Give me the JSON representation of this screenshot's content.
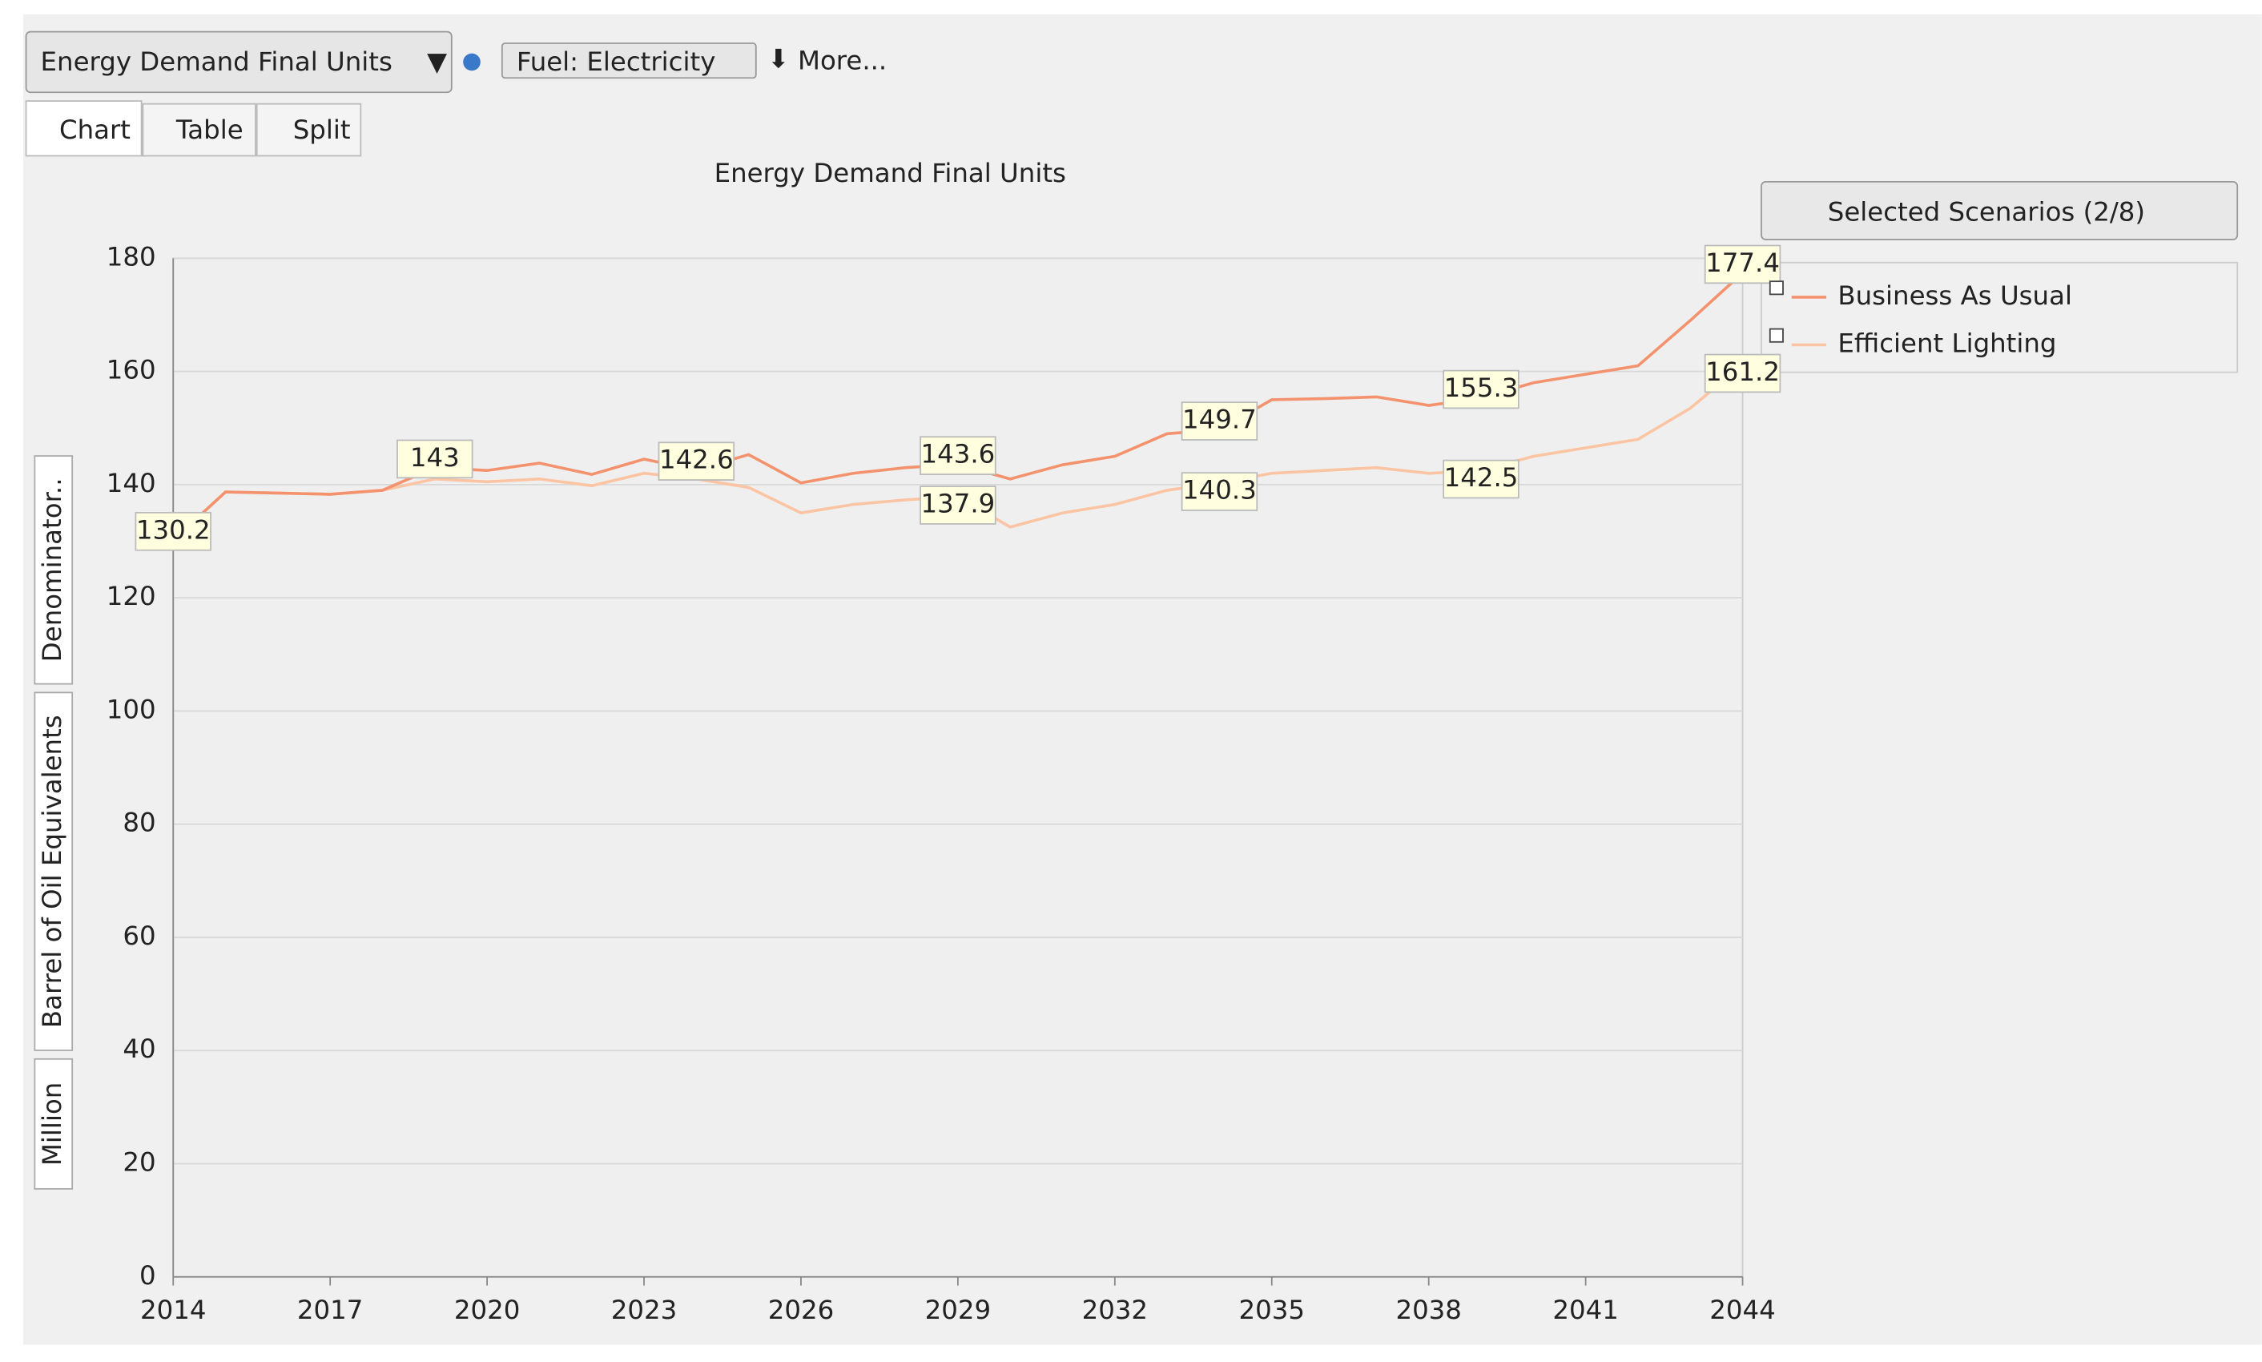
{
  "ui": {
    "indicator": "Energy Demand Final Units",
    "fuel": "Fuel: Electricity",
    "more": "More...",
    "tabs": [
      "Chart",
      "Table",
      "Split"
    ],
    "scenarios": "Selected Scenarios (2/8)",
    "y_axis_parts": [
      "Million",
      "Barrel of Oil Equivalents",
      "Denominator.."
    ]
  },
  "chart_data": {
    "type": "line",
    "title": "Energy Demand Final Units",
    "x": [
      2014,
      2015,
      2016,
      2017,
      2018,
      2019,
      2020,
      2021,
      2022,
      2023,
      2024,
      2025,
      2026,
      2027,
      2028,
      2029,
      2030,
      2031,
      2032,
      2033,
      2034,
      2035,
      2036,
      2037,
      2038,
      2039,
      2040,
      2041,
      2042,
      2043,
      2044
    ],
    "series": [
      {
        "name": "Business As Usual",
        "color": "#f4926e",
        "values": [
          130.2,
          138.7,
          138.5,
          138.3,
          139,
          143,
          142.5,
          143.8,
          141.8,
          144.5,
          142.6,
          145.3,
          140.3,
          142,
          143,
          143.6,
          141,
          143.5,
          145,
          149,
          149.7,
          155,
          155.2,
          155.5,
          154,
          155.3,
          158,
          159.5,
          161,
          169,
          177.4
        ],
        "value_labels": [
          "130.2",
          null,
          null,
          null,
          null,
          "143",
          null,
          null,
          null,
          null,
          "142.6",
          null,
          null,
          null,
          null,
          "143.6",
          null,
          null,
          null,
          null,
          "149.7",
          null,
          null,
          null,
          null,
          "155.3",
          null,
          null,
          null,
          null,
          "177.4"
        ]
      },
      {
        "name": "Efficient  Lighting",
        "color": "#fbc4a3",
        "values": [
          130.2,
          138.7,
          138.5,
          138.3,
          139,
          141,
          140.5,
          141,
          139.8,
          142,
          141,
          139.5,
          135,
          136.5,
          137.3,
          137.9,
          132.5,
          135,
          136.5,
          139,
          140.3,
          142,
          142.5,
          143,
          142,
          142.5,
          145,
          146.5,
          148,
          153.5,
          161.2
        ],
        "value_labels": [
          null,
          null,
          null,
          null,
          null,
          null,
          null,
          null,
          null,
          null,
          null,
          null,
          null,
          null,
          null,
          "137.9",
          null,
          null,
          null,
          null,
          "140.3",
          null,
          null,
          null,
          null,
          "142.5",
          null,
          null,
          null,
          null,
          "161.2"
        ]
      }
    ],
    "xlim": [
      2014,
      2044
    ],
    "xticks": [
      2014,
      2017,
      2020,
      2023,
      2026,
      2029,
      2032,
      2035,
      2038,
      2041,
      2044
    ],
    "ylim": [
      0,
      180
    ],
    "yticks": [
      0,
      20,
      40,
      60,
      80,
      100,
      120,
      140,
      160,
      180
    ],
    "grid": true,
    "legend": "right"
  }
}
